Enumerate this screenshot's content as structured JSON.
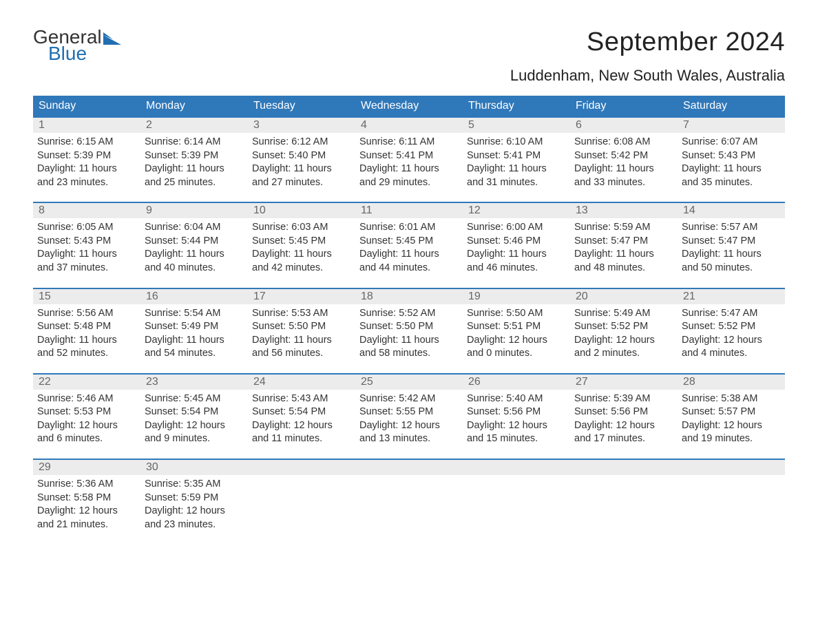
{
  "brand": {
    "part1": "General",
    "part2": "Blue",
    "icon_color": "#1f6fb2"
  },
  "title": "September 2024",
  "location": "Luddenham, New South Wales, Australia",
  "colors": {
    "header_bg": "#2f78ba",
    "header_text": "#ffffff",
    "row_border": "#2f78ba",
    "daynum_bg": "#ececec",
    "daynum_text": "#666666",
    "body_text": "#333333",
    "background": "#ffffff"
  },
  "dow": [
    "Sunday",
    "Monday",
    "Tuesday",
    "Wednesday",
    "Thursday",
    "Friday",
    "Saturday"
  ],
  "weeks": [
    [
      {
        "n": "1",
        "sunrise": "6:15 AM",
        "sunset": "5:39 PM",
        "daylight": "11 hours and 23 minutes."
      },
      {
        "n": "2",
        "sunrise": "6:14 AM",
        "sunset": "5:39 PM",
        "daylight": "11 hours and 25 minutes."
      },
      {
        "n": "3",
        "sunrise": "6:12 AM",
        "sunset": "5:40 PM",
        "daylight": "11 hours and 27 minutes."
      },
      {
        "n": "4",
        "sunrise": "6:11 AM",
        "sunset": "5:41 PM",
        "daylight": "11 hours and 29 minutes."
      },
      {
        "n": "5",
        "sunrise": "6:10 AM",
        "sunset": "5:41 PM",
        "daylight": "11 hours and 31 minutes."
      },
      {
        "n": "6",
        "sunrise": "6:08 AM",
        "sunset": "5:42 PM",
        "daylight": "11 hours and 33 minutes."
      },
      {
        "n": "7",
        "sunrise": "6:07 AM",
        "sunset": "5:43 PM",
        "daylight": "11 hours and 35 minutes."
      }
    ],
    [
      {
        "n": "8",
        "sunrise": "6:05 AM",
        "sunset": "5:43 PM",
        "daylight": "11 hours and 37 minutes."
      },
      {
        "n": "9",
        "sunrise": "6:04 AM",
        "sunset": "5:44 PM",
        "daylight": "11 hours and 40 minutes."
      },
      {
        "n": "10",
        "sunrise": "6:03 AM",
        "sunset": "5:45 PM",
        "daylight": "11 hours and 42 minutes."
      },
      {
        "n": "11",
        "sunrise": "6:01 AM",
        "sunset": "5:45 PM",
        "daylight": "11 hours and 44 minutes."
      },
      {
        "n": "12",
        "sunrise": "6:00 AM",
        "sunset": "5:46 PM",
        "daylight": "11 hours and 46 minutes."
      },
      {
        "n": "13",
        "sunrise": "5:59 AM",
        "sunset": "5:47 PM",
        "daylight": "11 hours and 48 minutes."
      },
      {
        "n": "14",
        "sunrise": "5:57 AM",
        "sunset": "5:47 PM",
        "daylight": "11 hours and 50 minutes."
      }
    ],
    [
      {
        "n": "15",
        "sunrise": "5:56 AM",
        "sunset": "5:48 PM",
        "daylight": "11 hours and 52 minutes."
      },
      {
        "n": "16",
        "sunrise": "5:54 AM",
        "sunset": "5:49 PM",
        "daylight": "11 hours and 54 minutes."
      },
      {
        "n": "17",
        "sunrise": "5:53 AM",
        "sunset": "5:50 PM",
        "daylight": "11 hours and 56 minutes."
      },
      {
        "n": "18",
        "sunrise": "5:52 AM",
        "sunset": "5:50 PM",
        "daylight": "11 hours and 58 minutes."
      },
      {
        "n": "19",
        "sunrise": "5:50 AM",
        "sunset": "5:51 PM",
        "daylight": "12 hours and 0 minutes."
      },
      {
        "n": "20",
        "sunrise": "5:49 AM",
        "sunset": "5:52 PM",
        "daylight": "12 hours and 2 minutes."
      },
      {
        "n": "21",
        "sunrise": "5:47 AM",
        "sunset": "5:52 PM",
        "daylight": "12 hours and 4 minutes."
      }
    ],
    [
      {
        "n": "22",
        "sunrise": "5:46 AM",
        "sunset": "5:53 PM",
        "daylight": "12 hours and 6 minutes."
      },
      {
        "n": "23",
        "sunrise": "5:45 AM",
        "sunset": "5:54 PM",
        "daylight": "12 hours and 9 minutes."
      },
      {
        "n": "24",
        "sunrise": "5:43 AM",
        "sunset": "5:54 PM",
        "daylight": "12 hours and 11 minutes."
      },
      {
        "n": "25",
        "sunrise": "5:42 AM",
        "sunset": "5:55 PM",
        "daylight": "12 hours and 13 minutes."
      },
      {
        "n": "26",
        "sunrise": "5:40 AM",
        "sunset": "5:56 PM",
        "daylight": "12 hours and 15 minutes."
      },
      {
        "n": "27",
        "sunrise": "5:39 AM",
        "sunset": "5:56 PM",
        "daylight": "12 hours and 17 minutes."
      },
      {
        "n": "28",
        "sunrise": "5:38 AM",
        "sunset": "5:57 PM",
        "daylight": "12 hours and 19 minutes."
      }
    ],
    [
      {
        "n": "29",
        "sunrise": "5:36 AM",
        "sunset": "5:58 PM",
        "daylight": "12 hours and 21 minutes."
      },
      {
        "n": "30",
        "sunrise": "5:35 AM",
        "sunset": "5:59 PM",
        "daylight": "12 hours and 23 minutes."
      },
      null,
      null,
      null,
      null,
      null
    ]
  ],
  "labels": {
    "sunrise_prefix": "Sunrise: ",
    "sunset_prefix": "Sunset: ",
    "daylight_prefix": "Daylight: "
  }
}
